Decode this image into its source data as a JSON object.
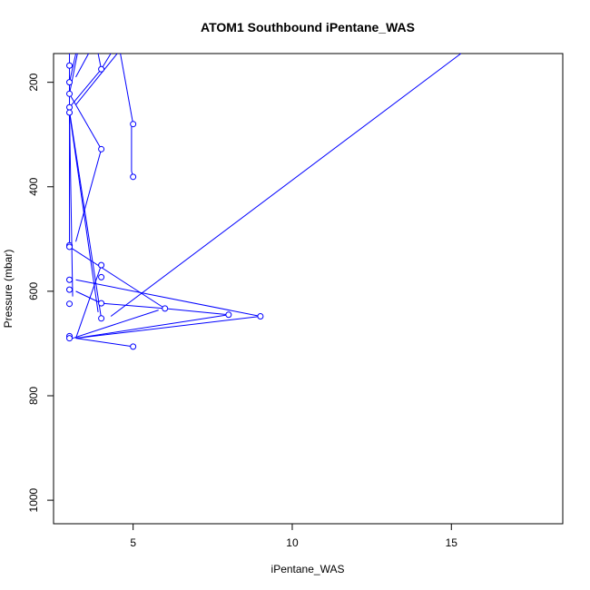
{
  "chart_data": {
    "type": "line",
    "title": "ATOM1 Southbound iPentane_WAS",
    "xlabel": "iPentane_WAS",
    "ylabel": "Pressure (mbar)",
    "xlim": [
      2.5,
      18.5
    ],
    "ylim": [
      1045,
      145
    ],
    "y_reversed": true,
    "x_ticks": [
      5,
      10,
      15
    ],
    "y_ticks": [
      200,
      400,
      600,
      800,
      1000
    ],
    "grid": false,
    "legend": "none",
    "series_color": "#0000ff",
    "markers": [
      {
        "x": 3,
        "y": 168
      },
      {
        "x": 3,
        "y": 200
      },
      {
        "x": 3,
        "y": 222
      },
      {
        "x": 3,
        "y": 248
      },
      {
        "x": 3,
        "y": 258
      },
      {
        "x": 3,
        "y": 512
      },
      {
        "x": 3,
        "y": 515
      },
      {
        "x": 3,
        "y": 578
      },
      {
        "x": 3,
        "y": 597
      },
      {
        "x": 3,
        "y": 624
      },
      {
        "x": 3,
        "y": 686
      },
      {
        "x": 3,
        "y": 690
      },
      {
        "x": 4,
        "y": 175
      },
      {
        "x": 4,
        "y": 328
      },
      {
        "x": 4,
        "y": 550
      },
      {
        "x": 4,
        "y": 573
      },
      {
        "x": 4,
        "y": 623
      },
      {
        "x": 4,
        "y": 652
      },
      {
        "x": 5,
        "y": 280
      },
      {
        "x": 5,
        "y": 381
      },
      {
        "x": 5,
        "y": 706
      },
      {
        "x": 6,
        "y": 633
      },
      {
        "x": 8,
        "y": 645
      },
      {
        "x": 9,
        "y": 648
      }
    ],
    "segments": [
      [
        [
          3.0,
          145
        ],
        [
          3.0,
          168
        ]
      ],
      [
        [
          3.2,
          145
        ],
        [
          3.0,
          200
        ]
      ],
      [
        [
          3.0,
          222
        ],
        [
          3.25,
          145
        ]
      ],
      [
        [
          3.2,
          190
        ],
        [
          3.6,
          145
        ]
      ],
      [
        [
          3.0,
          248
        ],
        [
          4.0,
          175
        ]
      ],
      [
        [
          4.0,
          175
        ],
        [
          4.3,
          145
        ]
      ],
      [
        [
          4.0,
          175
        ],
        [
          3.9,
          145
        ]
      ],
      [
        [
          3.2,
          243
        ],
        [
          4.5,
          145
        ]
      ],
      [
        [
          4.6,
          145
        ],
        [
          5.0,
          280
        ]
      ],
      [
        [
          5.0,
          280
        ],
        [
          4.95,
          285
        ]
      ],
      [
        [
          4.95,
          285
        ],
        [
          4.95,
          370
        ]
      ],
      [
        [
          4.95,
          370
        ],
        [
          5.0,
          381
        ]
      ],
      [
        [
          3.0,
          222
        ],
        [
          4.0,
          328
        ]
      ],
      [
        [
          4.0,
          328
        ],
        [
          3.2,
          505
        ]
      ],
      [
        [
          3.0,
          168
        ],
        [
          3.0,
          512
        ]
      ],
      [
        [
          3.0,
          255
        ],
        [
          4.0,
          652
        ]
      ],
      [
        [
          3.0,
          258
        ],
        [
          3.9,
          640
        ]
      ],
      [
        [
          3.0,
          258
        ],
        [
          3.1,
          610
        ]
      ],
      [
        [
          3.0,
          515
        ],
        [
          3.1,
          512
        ]
      ],
      [
        [
          3.0,
          515
        ],
        [
          6.0,
          633
        ]
      ],
      [
        [
          3.2,
          578
        ],
        [
          9.0,
          648
        ]
      ],
      [
        [
          3.2,
          600
        ],
        [
          4.0,
          623
        ]
      ],
      [
        [
          4.0,
          623
        ],
        [
          6.0,
          633
        ]
      ],
      [
        [
          4.0,
          550
        ],
        [
          3.2,
          690
        ]
      ],
      [
        [
          6.0,
          633
        ],
        [
          8.0,
          645
        ]
      ],
      [
        [
          8.0,
          645
        ],
        [
          3.2,
          690
        ]
      ],
      [
        [
          9.0,
          648
        ],
        [
          3.2,
          690
        ]
      ],
      [
        [
          5.8,
          636
        ],
        [
          3.1,
          690
        ]
      ],
      [
        [
          3.2,
          690
        ],
        [
          5.0,
          706
        ]
      ],
      [
        [
          4.3,
          648
        ],
        [
          15.3,
          145
        ]
      ]
    ]
  }
}
